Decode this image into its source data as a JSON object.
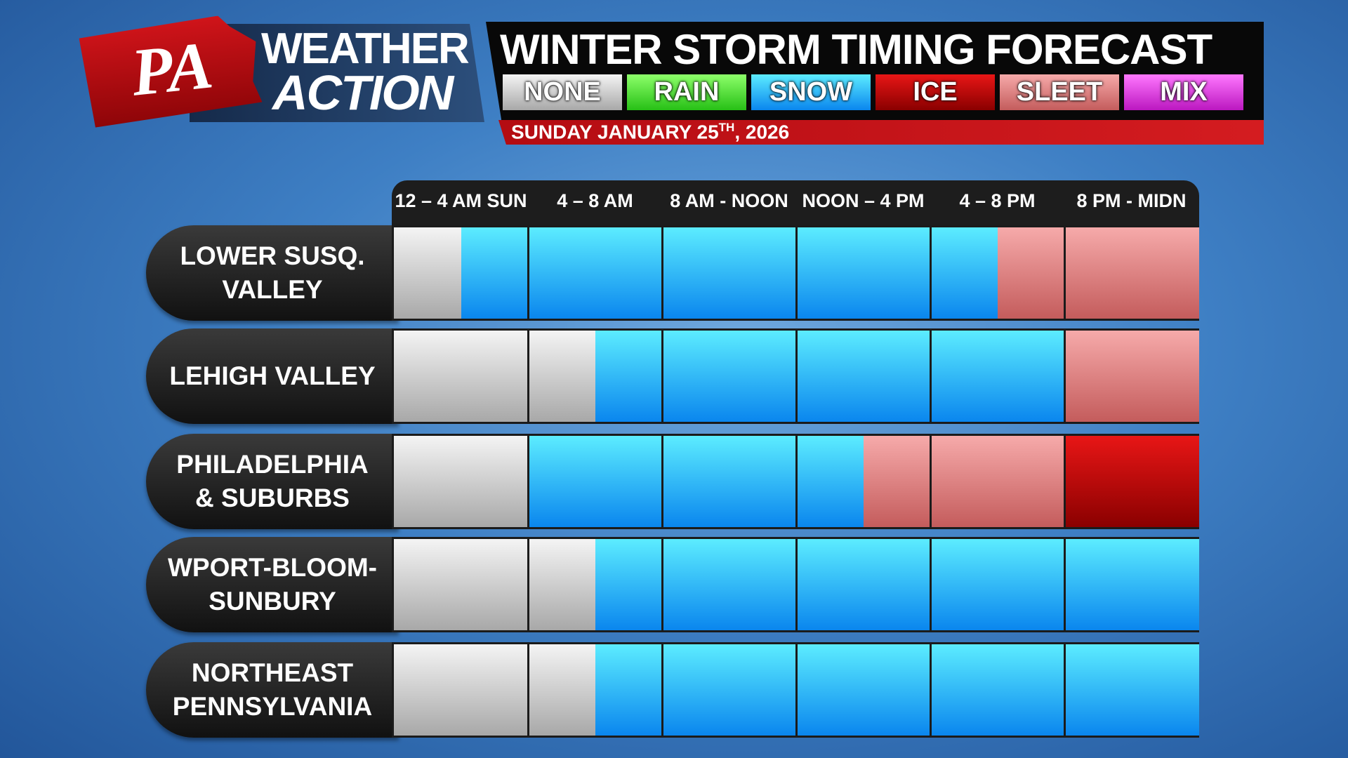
{
  "logo": {
    "initials": "PA",
    "line1": "WEATHER",
    "line2": "ACTION"
  },
  "title": "WINTER STORM TIMING FORECAST",
  "legend": [
    {
      "label": "NONE",
      "colors": [
        "#f4f4f4",
        "#a8a8a8"
      ]
    },
    {
      "label": "RAIN",
      "colors": [
        "#8dff6a",
        "#27c016"
      ]
    },
    {
      "label": "SNOW",
      "colors": [
        "#5cecff",
        "#0a86ee"
      ]
    },
    {
      "label": "ICE",
      "colors": [
        "#e81616",
        "#8a0000"
      ]
    },
    {
      "label": "SLEET",
      "colors": [
        "#f6aaaa",
        "#c45c5c"
      ]
    },
    {
      "label": "MIX",
      "colors": [
        "#ff78ff",
        "#bb18c0"
      ]
    }
  ],
  "date": {
    "main": "SUNDAY JANUARY 25",
    "superscript": "TH",
    "rest": ", 2026"
  },
  "periods": [
    "12 – 4 AM SUN",
    "4 – 8 AM",
    "8 AM - NOON",
    "NOON – 4 PM",
    "4 – 8 PM",
    "8 PM - MIDN"
  ],
  "regions": [
    {
      "name": [
        "LOWER SUSQ.",
        "VALLEY"
      ],
      "slots": [
        "NONE",
        "SNOW",
        "SNOW",
        "SNOW",
        "SNOW",
        "SNOW",
        "SNOW",
        "SNOW",
        "SNOW",
        "SLEET",
        "SLEET",
        "SLEET"
      ]
    },
    {
      "name": [
        "LEHIGH VALLEY"
      ],
      "slots": [
        "NONE",
        "NONE",
        "NONE",
        "SNOW",
        "SNOW",
        "SNOW",
        "SNOW",
        "SNOW",
        "SNOW",
        "SNOW",
        "SLEET",
        "SLEET"
      ]
    },
    {
      "name": [
        "PHILADELPHIA",
        "& SUBURBS"
      ],
      "slots": [
        "NONE",
        "NONE",
        "SNOW",
        "SNOW",
        "SNOW",
        "SNOW",
        "SNOW",
        "SLEET",
        "SLEET",
        "SLEET",
        "ICE",
        "ICE"
      ]
    },
    {
      "name": [
        "WPORT-BLOOM-",
        "SUNBURY"
      ],
      "slots": [
        "NONE",
        "NONE",
        "NONE",
        "SNOW",
        "SNOW",
        "SNOW",
        "SNOW",
        "SNOW",
        "SNOW",
        "SNOW",
        "SNOW",
        "SNOW"
      ]
    },
    {
      "name": [
        "NORTHEAST",
        "PENNSYLVANIA"
      ],
      "slots": [
        "NONE",
        "NONE",
        "NONE",
        "SNOW",
        "SNOW",
        "SNOW",
        "SNOW",
        "SNOW",
        "SNOW",
        "SNOW",
        "SNOW",
        "SNOW"
      ]
    }
  ]
}
